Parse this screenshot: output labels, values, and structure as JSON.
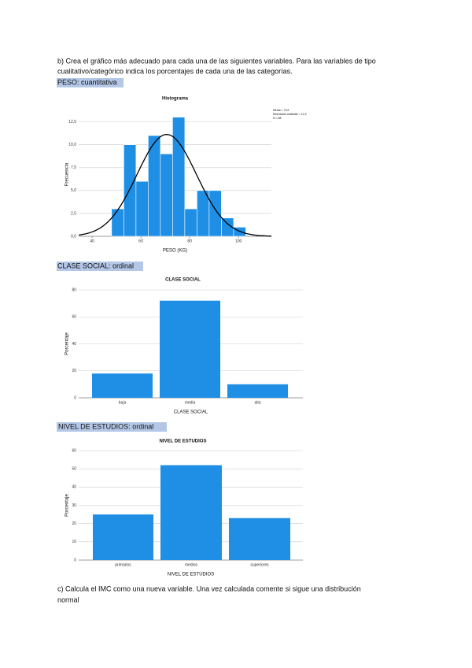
{
  "paragraphs": {
    "b": [
      "b) Crea el gráfico más adecuado para cada una de las siguientes variables. Para las variables de tipo",
      "cualitativo/categórico indica los porcentajes de cada una de las categorías."
    ],
    "c": [
      "c) Calcula el IMC como una nueva variable. Una vez calculada comente si sigue una distribución",
      "normal"
    ]
  },
  "headings": [
    "PESO: cuantitativa",
    "CLASE SOCIAL: ordinal",
    "NIVEL DE ESTUDIOS: ordinal"
  ],
  "chart_data": [
    {
      "type": "histogram",
      "title": "Histograma",
      "x_label": "PESO (KG)",
      "y_label": "Frecuencia",
      "legend_lines": [
        "Media = 70,6",
        "Desviación estándar = 12,2",
        "N = 68"
      ],
      "color": "#1f8fe5",
      "bins": [
        48,
        53,
        58,
        63,
        68,
        73,
        78,
        83,
        88,
        93,
        98,
        103
      ],
      "counts": [
        3,
        10,
        6,
        11,
        9,
        13,
        3,
        5,
        5,
        2,
        1
      ],
      "curve": {
        "mean": 70.6,
        "sd": 12.2,
        "n": 68
      },
      "xlim": [
        34.5,
        113.5
      ],
      "xticks": [
        40,
        60,
        80,
        100
      ],
      "ylim": [
        0,
        13.5
      ],
      "yticks": [
        {
          "value": 0,
          "label": "0,0"
        },
        {
          "value": 2.5,
          "label": "2,5"
        },
        {
          "value": 5,
          "label": "5,0"
        },
        {
          "value": 7.5,
          "label": "7,5"
        },
        {
          "value": 10,
          "label": "10,0"
        },
        {
          "value": 12.5,
          "label": "12,5"
        }
      ],
      "grid": true
    },
    {
      "type": "bar",
      "title": "CLASE SOCIAL",
      "x_label": "CLASE SOCIAL",
      "y_label": "Porcentaje",
      "color": "#1f8fe5",
      "categories": [
        "baja",
        "media",
        "alta"
      ],
      "values": [
        18,
        72,
        10
      ],
      "ylim": [
        0,
        80
      ],
      "yticks": [
        0,
        20,
        40,
        60,
        80
      ],
      "grid": true
    },
    {
      "type": "bar",
      "title": "NIVEL DE ESTUDIOS",
      "x_label": "NIVEL DE ESTUDIOS",
      "y_label": "Porcentaje",
      "color": "#1f8fe5",
      "categories": [
        "primarios",
        "medios",
        "superiores"
      ],
      "values": [
        25,
        52,
        23
      ],
      "ylim": [
        0,
        60
      ],
      "yticks": [
        0,
        10,
        20,
        30,
        40,
        50,
        60
      ],
      "grid": true
    }
  ]
}
